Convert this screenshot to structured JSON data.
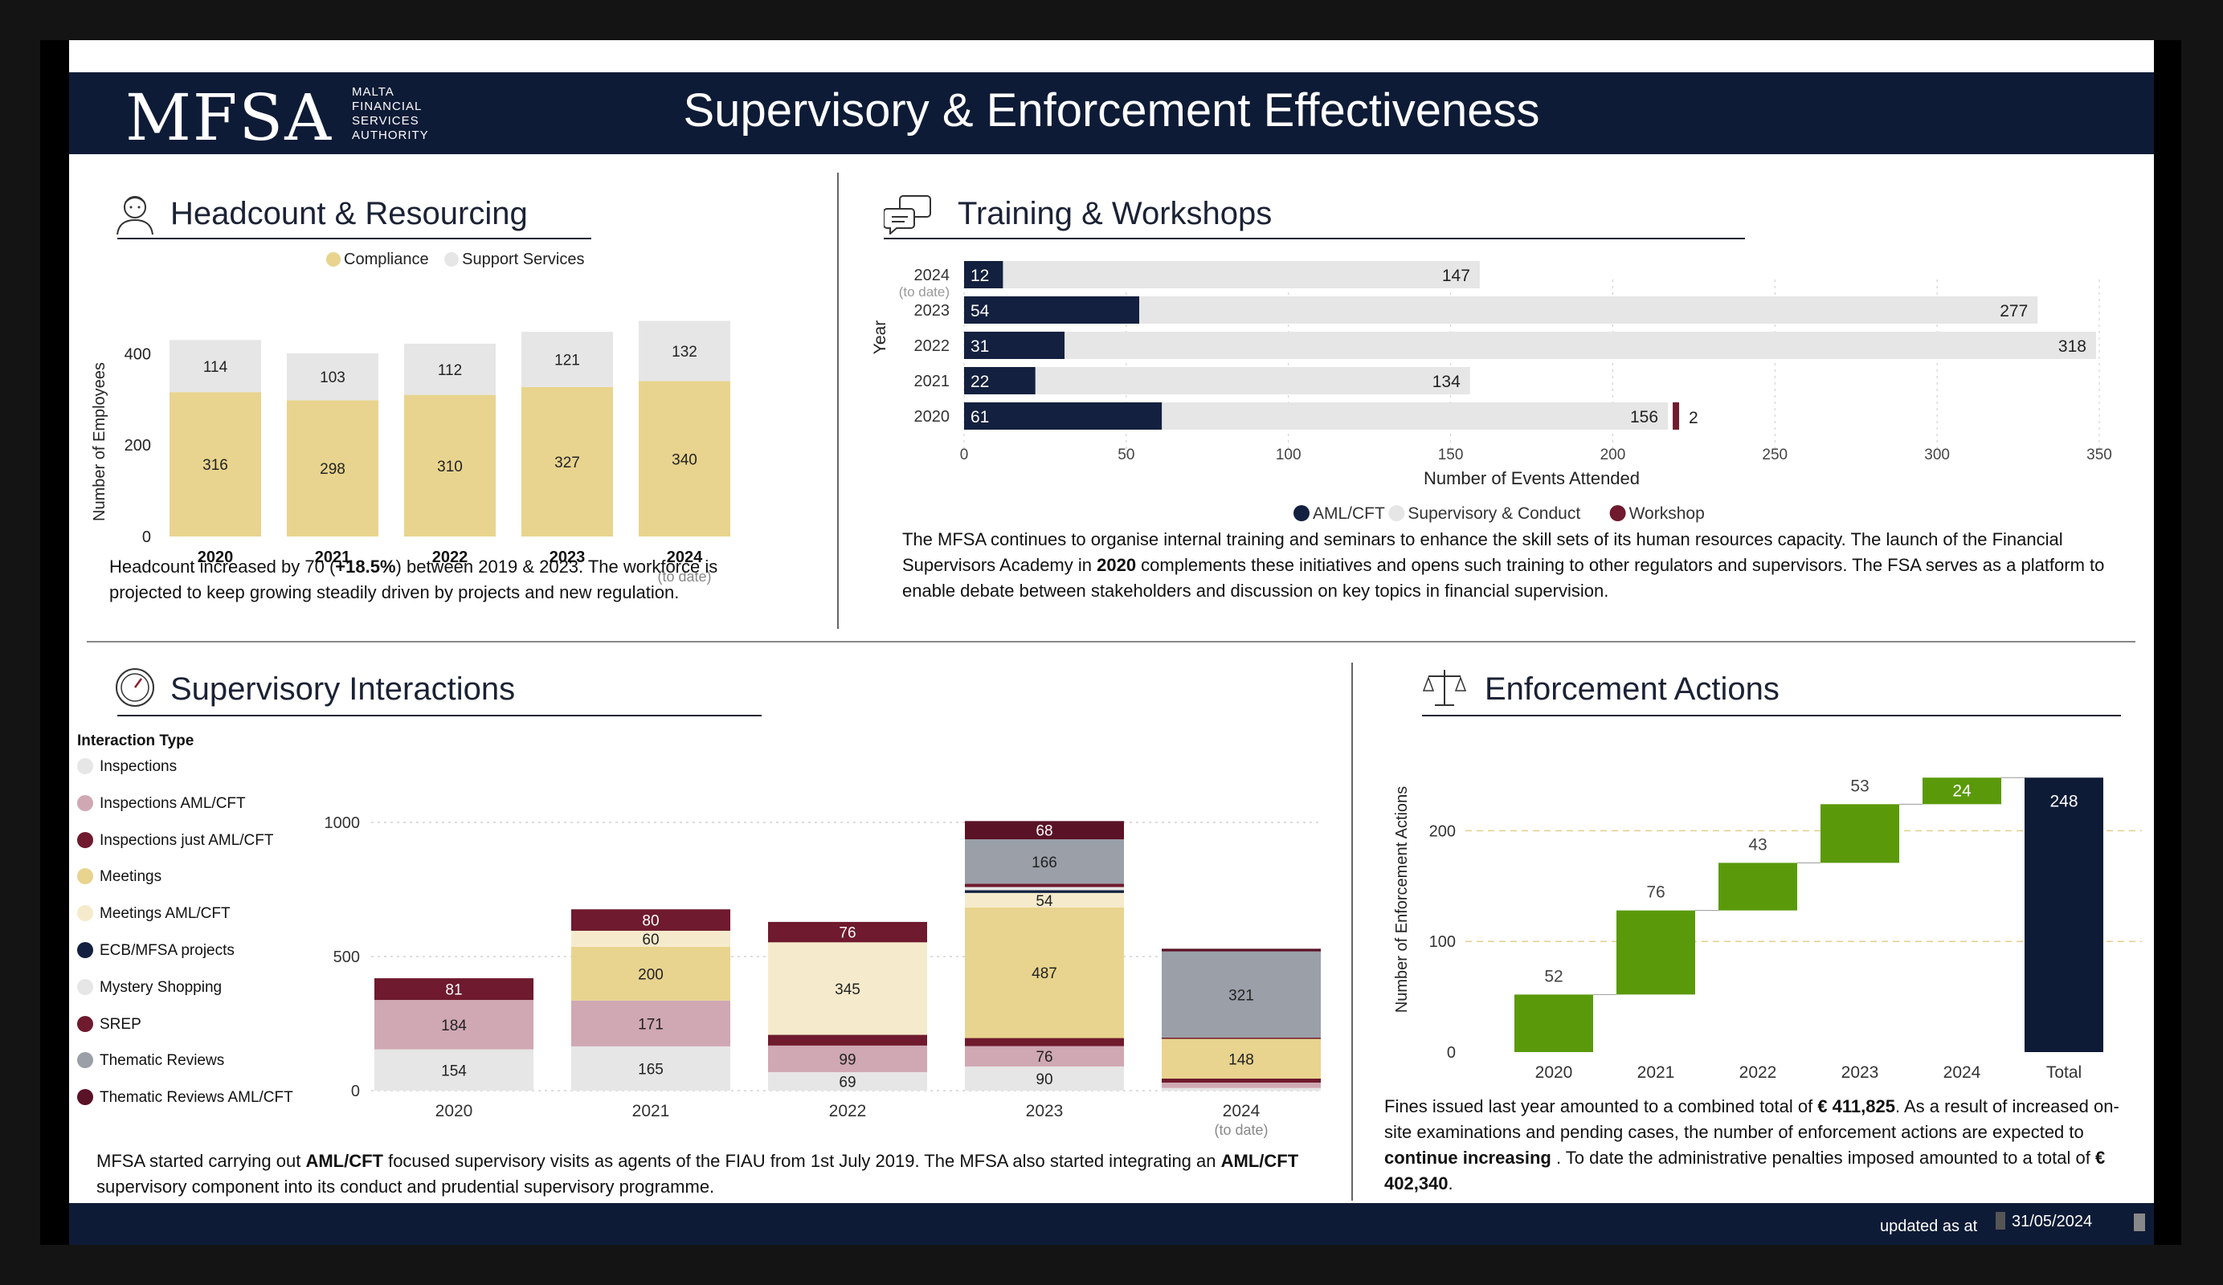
{
  "header": {
    "logo": "MFSA",
    "logo_sub": [
      "MALTA",
      "FINANCIAL",
      "SERVICES",
      "AUTHORITY"
    ],
    "title": "Supervisory & Enforcement Effectiveness"
  },
  "sections": {
    "headcount": "Headcount & Resourcing",
    "training": "Training & Workshops",
    "interactions": "Supervisory Interactions",
    "enforcement": "Enforcement Actions"
  },
  "headcount": {
    "legend": [
      "Compliance",
      "Support Services"
    ],
    "note_parts": [
      "Headcount increased by 70 (",
      "+18.5%",
      ") between 2019 & 2023. The workforce is projected to keep growing steadily driven by projects and new regulation."
    ]
  },
  "training": {
    "note_parts": [
      "The MFSA continues to organise internal training and seminars to enhance the skill sets of its human resources capacity. The launch of the Financial Supervisors Academy in ",
      "2020",
      " complements these initiatives and opens such training to other regulators and supervisors. The FSA serves as a platform to enable debate between stakeholders and discussion on key topics in financial supervision."
    ]
  },
  "interactions": {
    "legend_title": "Interaction Type",
    "note_parts": [
      "MFSA started carrying out ",
      "AML/CFT",
      " focused supervisory visits as agents of the FIAU from 1st July 2019. The MFSA also started integrating an ",
      "AML/CFT",
      " supervisory component into its conduct and prudential supervisory programme."
    ]
  },
  "enforcement": {
    "note_parts": [
      "Fines issued last year amounted to a combined total of ",
      "€ 411,825",
      ". As a result of increased on-site examinations and pending cases, the number of enforcement actions are expected to ",
      "continue increasing",
      " . To date the administrative penalties imposed amounted to a total of  ",
      "€ 402,340",
      "."
    ]
  },
  "footer": {
    "updated_label": "updated as at",
    "date": "31/05/2024"
  },
  "colors": {
    "navy": "#0e1b36",
    "compliance": "#e8d48e",
    "support": "#e6e6e6",
    "aml": "#13203f",
    "supervisory": "#e6e6e6",
    "workshop": "#6f1a2e",
    "green": "#5a9a0a"
  },
  "chart_data": [
    {
      "type": "bar",
      "stacked": true,
      "categories": [
        "2020",
        "2021",
        "2022",
        "2023",
        "2024"
      ],
      "category_sublabels": [
        "",
        "",
        "",
        "",
        "(to date)"
      ],
      "series": [
        {
          "name": "Compliance",
          "values": [
            316,
            298,
            310,
            327,
            340
          ],
          "color": "#e8d48e"
        },
        {
          "name": "Support Services",
          "values": [
            114,
            103,
            112,
            121,
            132
          ],
          "color": "#e6e6e6"
        }
      ],
      "ylabel": "Number of Employees",
      "yticks": [
        0,
        200,
        400
      ],
      "ylim": [
        0,
        450
      ],
      "legend": "top"
    },
    {
      "type": "bar",
      "orientation": "horizontal",
      "categories": [
        "2024",
        "2023",
        "2022",
        "2021",
        "2020"
      ],
      "category_sublabels": [
        "(to date)",
        "",
        "",
        "",
        ""
      ],
      "series": [
        {
          "name": "AML/CFT",
          "values": [
            12,
            54,
            31,
            22,
            61
          ],
          "color": "#13203f"
        },
        {
          "name": "Supervisory & Conduct",
          "values": [
            147,
            277,
            318,
            134,
            156
          ],
          "color": "#e6e6e6"
        },
        {
          "name": "Workshop",
          "values": [
            0,
            0,
            0,
            0,
            2
          ],
          "color": "#6f1a2e"
        }
      ],
      "xlabel": "Number of Events Attended",
      "ylabel": "Year",
      "xticks": [
        0,
        50,
        100,
        150,
        200,
        250,
        300,
        350
      ],
      "xlim": [
        0,
        350
      ],
      "legend": "bottom"
    },
    {
      "type": "bar",
      "stacked": true,
      "categories": [
        "2020",
        "2021",
        "2022",
        "2023",
        "2024"
      ],
      "category_sublabels": [
        "",
        "",
        "",
        "",
        "(to date)"
      ],
      "series": [
        {
          "name": "Inspections",
          "values": [
            154,
            165,
            69,
            90,
            10
          ],
          "color": "#e6e6e6"
        },
        {
          "name": "Inspections  AML/CFT",
          "values": [
            184,
            171,
            99,
            76,
            20
          ],
          "color": "#cfa8b3"
        },
        {
          "name": "Inspections just AML/CFT",
          "values": [
            0,
            0,
            40,
            30,
            15
          ],
          "color": "#6f1a2e"
        },
        {
          "name": "Meetings",
          "values": [
            0,
            200,
            0,
            487,
            148
          ],
          "color": "#e8d48e"
        },
        {
          "name": "Meetings  AML/CFT",
          "values": [
            0,
            60,
            345,
            54,
            0
          ],
          "color": "#f5ebcc"
        },
        {
          "name": "ECB/MFSA projects",
          "values": [
            0,
            0,
            0,
            10,
            0
          ],
          "color": "#13203f"
        },
        {
          "name": "Mystery Shopping",
          "values": [
            0,
            0,
            0,
            12,
            0
          ],
          "color": "#e6e6e6"
        },
        {
          "name": "SREP",
          "values": [
            81,
            80,
            76,
            12,
            5
          ],
          "color": "#6f1a2e"
        },
        {
          "name": "Thematic Reviews",
          "values": [
            0,
            0,
            0,
            166,
            321
          ],
          "color": "#9a9fa8"
        },
        {
          "name": "Thematic Reviews   AML/CFT",
          "values": [
            0,
            0,
            0,
            68,
            10
          ],
          "color": "#5a1226"
        }
      ],
      "yticks": [
        0,
        500,
        1000
      ],
      "ylim": [
        0,
        1050
      ],
      "legend": "left"
    },
    {
      "type": "bar",
      "waterfall": true,
      "categories": [
        "2020",
        "2021",
        "2022",
        "2023",
        "2024",
        "Total"
      ],
      "values": [
        52,
        76,
        43,
        53,
        24,
        248
      ],
      "colors": [
        "#5a9a0a",
        "#5a9a0a",
        "#5a9a0a",
        "#5a9a0a",
        "#5a9a0a",
        "#0e1b36"
      ],
      "ylabel": "Number of Enforcement Actions",
      "yticks": [
        0,
        100,
        200
      ],
      "ylim": [
        0,
        250
      ]
    }
  ]
}
